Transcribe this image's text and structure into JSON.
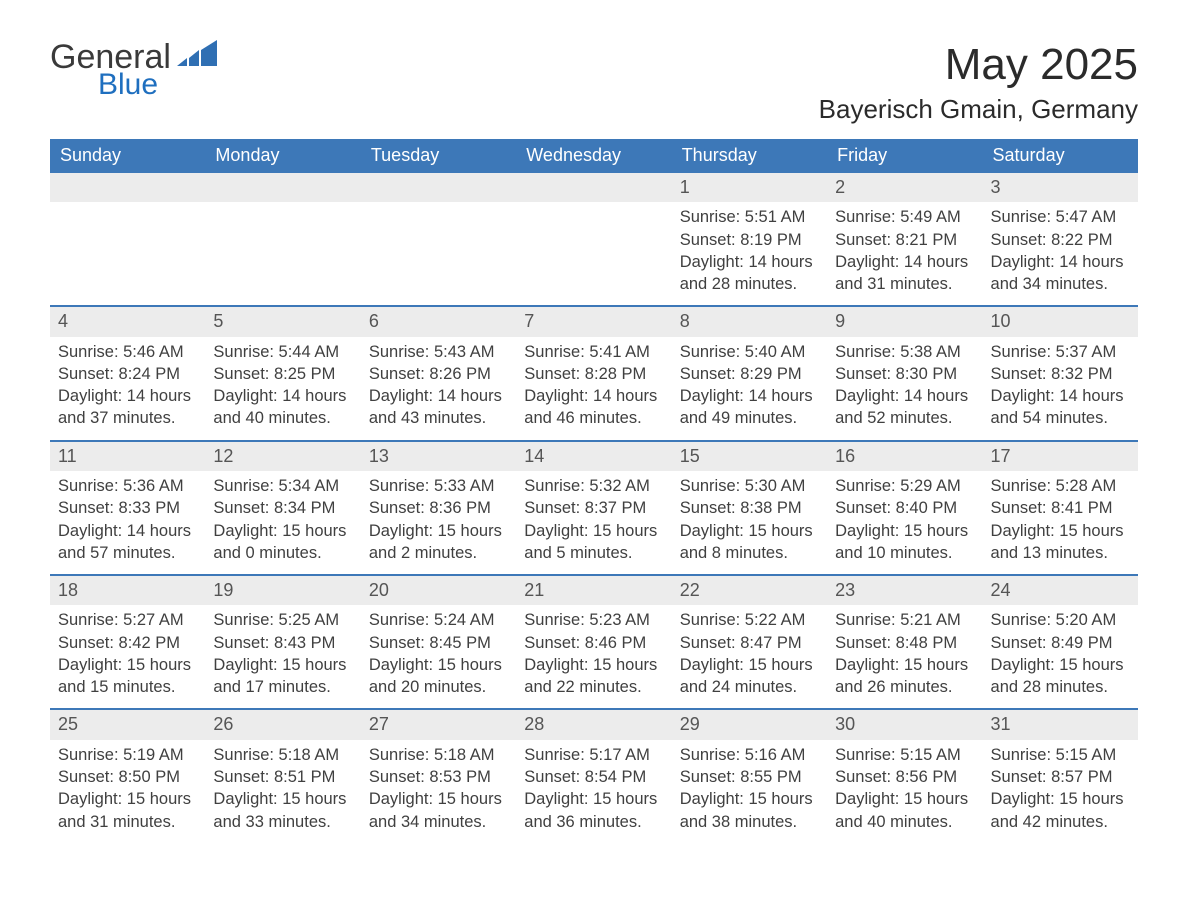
{
  "logo": {
    "text1": "General",
    "text2": "Blue"
  },
  "title": "May 2025",
  "location": "Bayerisch Gmain, Germany",
  "colors": {
    "header_bg": "#3d78b8",
    "header_text": "#ffffff",
    "daynum_bg": "#ececec",
    "border": "#3d78b8",
    "logo_blue": "#1f6fbf",
    "text": "#404040"
  },
  "weekdays": [
    "Sunday",
    "Monday",
    "Tuesday",
    "Wednesday",
    "Thursday",
    "Friday",
    "Saturday"
  ],
  "weeks": [
    [
      null,
      null,
      null,
      null,
      {
        "n": "1",
        "sr": "5:51 AM",
        "ss": "8:19 PM",
        "dh": "14",
        "dm": "28"
      },
      {
        "n": "2",
        "sr": "5:49 AM",
        "ss": "8:21 PM",
        "dh": "14",
        "dm": "31"
      },
      {
        "n": "3",
        "sr": "5:47 AM",
        "ss": "8:22 PM",
        "dh": "14",
        "dm": "34"
      }
    ],
    [
      {
        "n": "4",
        "sr": "5:46 AM",
        "ss": "8:24 PM",
        "dh": "14",
        "dm": "37"
      },
      {
        "n": "5",
        "sr": "5:44 AM",
        "ss": "8:25 PM",
        "dh": "14",
        "dm": "40"
      },
      {
        "n": "6",
        "sr": "5:43 AM",
        "ss": "8:26 PM",
        "dh": "14",
        "dm": "43"
      },
      {
        "n": "7",
        "sr": "5:41 AM",
        "ss": "8:28 PM",
        "dh": "14",
        "dm": "46"
      },
      {
        "n": "8",
        "sr": "5:40 AM",
        "ss": "8:29 PM",
        "dh": "14",
        "dm": "49"
      },
      {
        "n": "9",
        "sr": "5:38 AM",
        "ss": "8:30 PM",
        "dh": "14",
        "dm": "52"
      },
      {
        "n": "10",
        "sr": "5:37 AM",
        "ss": "8:32 PM",
        "dh": "14",
        "dm": "54"
      }
    ],
    [
      {
        "n": "11",
        "sr": "5:36 AM",
        "ss": "8:33 PM",
        "dh": "14",
        "dm": "57"
      },
      {
        "n": "12",
        "sr": "5:34 AM",
        "ss": "8:34 PM",
        "dh": "15",
        "dm": "0"
      },
      {
        "n": "13",
        "sr": "5:33 AM",
        "ss": "8:36 PM",
        "dh": "15",
        "dm": "2"
      },
      {
        "n": "14",
        "sr": "5:32 AM",
        "ss": "8:37 PM",
        "dh": "15",
        "dm": "5"
      },
      {
        "n": "15",
        "sr": "5:30 AM",
        "ss": "8:38 PM",
        "dh": "15",
        "dm": "8"
      },
      {
        "n": "16",
        "sr": "5:29 AM",
        "ss": "8:40 PM",
        "dh": "15",
        "dm": "10"
      },
      {
        "n": "17",
        "sr": "5:28 AM",
        "ss": "8:41 PM",
        "dh": "15",
        "dm": "13"
      }
    ],
    [
      {
        "n": "18",
        "sr": "5:27 AM",
        "ss": "8:42 PM",
        "dh": "15",
        "dm": "15"
      },
      {
        "n": "19",
        "sr": "5:25 AM",
        "ss": "8:43 PM",
        "dh": "15",
        "dm": "17"
      },
      {
        "n": "20",
        "sr": "5:24 AM",
        "ss": "8:45 PM",
        "dh": "15",
        "dm": "20"
      },
      {
        "n": "21",
        "sr": "5:23 AM",
        "ss": "8:46 PM",
        "dh": "15",
        "dm": "22"
      },
      {
        "n": "22",
        "sr": "5:22 AM",
        "ss": "8:47 PM",
        "dh": "15",
        "dm": "24"
      },
      {
        "n": "23",
        "sr": "5:21 AM",
        "ss": "8:48 PM",
        "dh": "15",
        "dm": "26"
      },
      {
        "n": "24",
        "sr": "5:20 AM",
        "ss": "8:49 PM",
        "dh": "15",
        "dm": "28"
      }
    ],
    [
      {
        "n": "25",
        "sr": "5:19 AM",
        "ss": "8:50 PM",
        "dh": "15",
        "dm": "31"
      },
      {
        "n": "26",
        "sr": "5:18 AM",
        "ss": "8:51 PM",
        "dh": "15",
        "dm": "33"
      },
      {
        "n": "27",
        "sr": "5:18 AM",
        "ss": "8:53 PM",
        "dh": "15",
        "dm": "34"
      },
      {
        "n": "28",
        "sr": "5:17 AM",
        "ss": "8:54 PM",
        "dh": "15",
        "dm": "36"
      },
      {
        "n": "29",
        "sr": "5:16 AM",
        "ss": "8:55 PM",
        "dh": "15",
        "dm": "38"
      },
      {
        "n": "30",
        "sr": "5:15 AM",
        "ss": "8:56 PM",
        "dh": "15",
        "dm": "40"
      },
      {
        "n": "31",
        "sr": "5:15 AM",
        "ss": "8:57 PM",
        "dh": "15",
        "dm": "42"
      }
    ]
  ],
  "labels": {
    "sunrise": "Sunrise: ",
    "sunset": "Sunset: ",
    "daylight1": "Daylight: ",
    "daylight2": " hours",
    "daylight3": "and ",
    "daylight4": " minutes."
  }
}
